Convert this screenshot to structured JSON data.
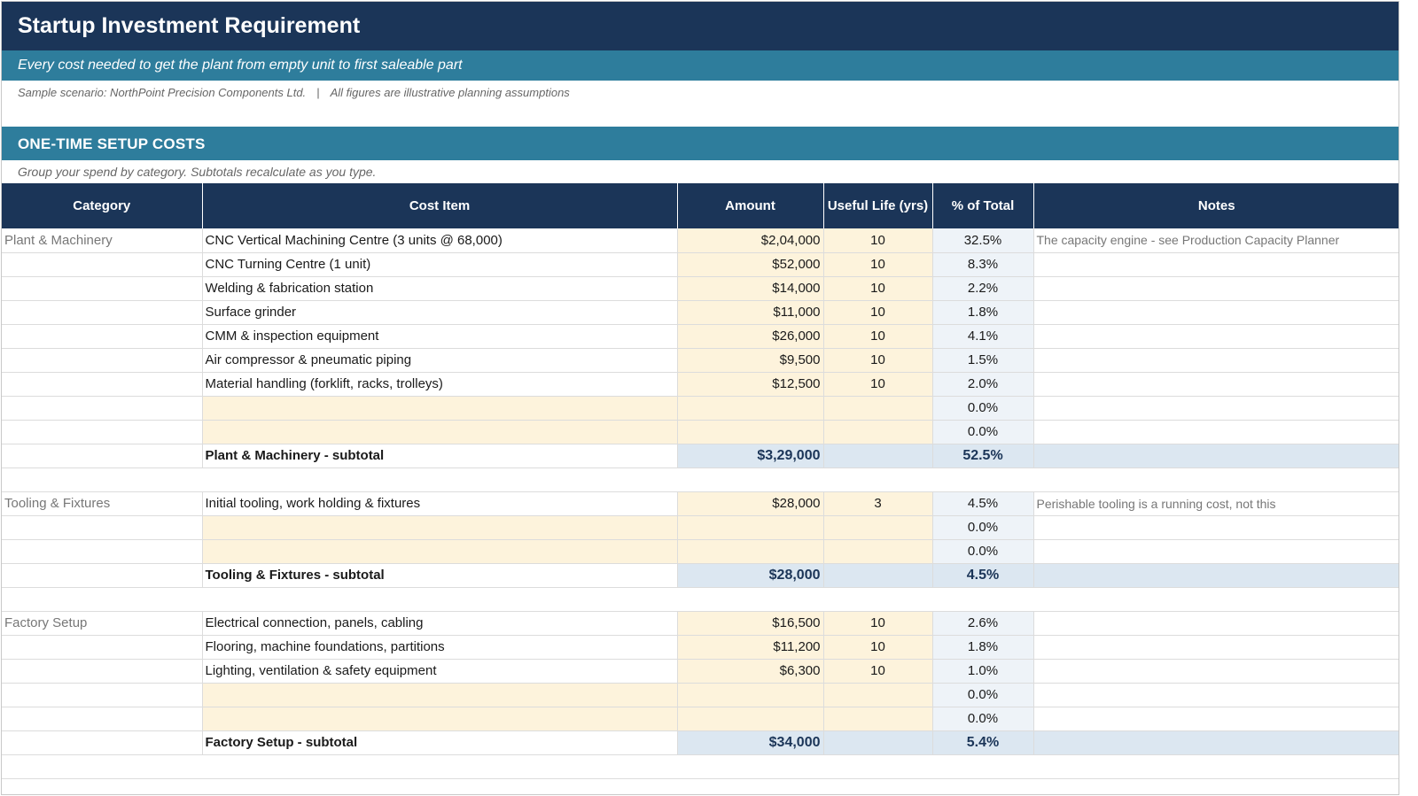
{
  "title": "Startup Investment Requirement",
  "subtitle": "Every cost needed to get the plant from empty unit to first saleable part",
  "scenario": {
    "left": "Sample scenario: NorthPoint Precision Components Ltd.",
    "separator": "|",
    "right": "All figures are illustrative planning assumptions"
  },
  "section": {
    "title": "ONE-TIME SETUP COSTS",
    "note": "Group your spend by category. Subtotals recalculate as you type."
  },
  "columns": {
    "category": "Category",
    "cost_item": "Cost Item",
    "amount": "Amount",
    "useful_life": "Useful Life (yrs)",
    "pct_total": "% of Total",
    "notes": "Notes"
  },
  "groups": [
    {
      "category": "Plant & Machinery",
      "rows": [
        {
          "item": "CNC Vertical Machining Centre (3 units @ 68,000)",
          "amount": "$2,04,000",
          "life": "10",
          "pct": "32.5%",
          "note": "The capacity engine - see Production Capacity Planner"
        },
        {
          "item": "CNC Turning Centre (1 unit)",
          "amount": "$52,000",
          "life": "10",
          "pct": "8.3%",
          "note": ""
        },
        {
          "item": "Welding & fabrication station",
          "amount": "$14,000",
          "life": "10",
          "pct": "2.2%",
          "note": ""
        },
        {
          "item": "Surface grinder",
          "amount": "$11,000",
          "life": "10",
          "pct": "1.8%",
          "note": ""
        },
        {
          "item": "CMM & inspection equipment",
          "amount": "$26,000",
          "life": "10",
          "pct": "4.1%",
          "note": ""
        },
        {
          "item": "Air compressor & pneumatic piping",
          "amount": "$9,500",
          "life": "10",
          "pct": "1.5%",
          "note": ""
        },
        {
          "item": "Material handling (forklift, racks, trolleys)",
          "amount": "$12,500",
          "life": "10",
          "pct": "2.0%",
          "note": ""
        },
        {
          "item": "",
          "amount": "",
          "life": "",
          "pct": "0.0%",
          "note": ""
        },
        {
          "item": "",
          "amount": "",
          "life": "",
          "pct": "0.0%",
          "note": ""
        }
      ],
      "subtotal": {
        "label": "Plant & Machinery - subtotal",
        "amount": "$3,29,000",
        "pct": "52.5%"
      }
    },
    {
      "category": "Tooling & Fixtures",
      "rows": [
        {
          "item": "Initial tooling, work holding & fixtures",
          "amount": "$28,000",
          "life": "3",
          "pct": "4.5%",
          "note": "Perishable tooling is a running cost, not this"
        },
        {
          "item": "",
          "amount": "",
          "life": "",
          "pct": "0.0%",
          "note": ""
        },
        {
          "item": "",
          "amount": "",
          "life": "",
          "pct": "0.0%",
          "note": ""
        }
      ],
      "subtotal": {
        "label": "Tooling & Fixtures - subtotal",
        "amount": "$28,000",
        "pct": "4.5%"
      }
    },
    {
      "category": "Factory Setup",
      "rows": [
        {
          "item": "Electrical connection, panels, cabling",
          "amount": "$16,500",
          "life": "10",
          "pct": "2.6%",
          "note": ""
        },
        {
          "item": "Flooring, machine foundations, partitions",
          "amount": "$11,200",
          "life": "10",
          "pct": "1.8%",
          "note": ""
        },
        {
          "item": "Lighting, ventilation & safety equipment",
          "amount": "$6,300",
          "life": "10",
          "pct": "1.0%",
          "note": ""
        },
        {
          "item": "",
          "amount": "",
          "life": "",
          "pct": "0.0%",
          "note": ""
        },
        {
          "item": "",
          "amount": "",
          "life": "",
          "pct": "0.0%",
          "note": ""
        }
      ],
      "subtotal": {
        "label": "Factory Setup - subtotal",
        "amount": "$34,000",
        "pct": "5.4%"
      }
    }
  ]
}
